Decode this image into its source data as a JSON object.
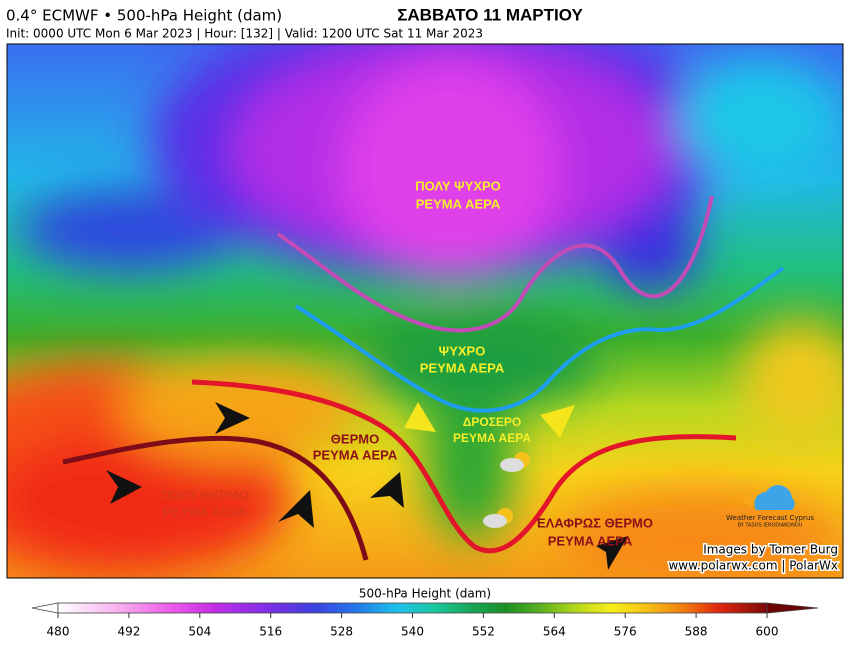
{
  "header": {
    "product": "0.4° ECMWF • 500-hPa Height (dam)",
    "init_line": "Init: 0000 UTC Mon 6 Mar 2023 | Hour: [132] | Valid: 1200 UTC Sat 11 Mar 2023",
    "title": "ΣΑΒΒΑΤΟ 11 ΜΑΡΤΙΟΥ"
  },
  "annotations": [
    [
      "ΠΟΛΥ ΨΥΧΡΟ",
      "ΡΕΥΜΑ ΑΕΡΑ"
    ],
    [
      "ΨΥΧΡΟ",
      "ΡΕΥΜΑ ΑΕΡΑ"
    ],
    [
      "ΔΡΟΣΕΡΟ",
      "ΡΕΥΜΑ ΑΕΡΑ"
    ],
    [
      "ΘΕΡΜΟ",
      "ΡΕΥΜΑ ΑΕΡΑ"
    ],
    [
      "ΠΟΛΥ ΘΕΡΜΟ",
      "ΡΕΥΜΑ ΑΕΡΑ"
    ],
    [
      "ΕΛΑΦΡΩΣ ΘΕΡΜΟ",
      "ΡΕΥΜΑ ΑΕΡΑ"
    ]
  ],
  "credits": {
    "images_by": "Images by Tomer Burg",
    "site": "www.polarwx.com | PolarWx",
    "logo_name": "Weather Forecast Cyprus",
    "logo_by": "BY TASOS IERODIAKONOU"
  },
  "colorbar": {
    "label": "500-hPa Height (dam)",
    "range": [
      480,
      600
    ],
    "ticks": [
      480,
      492,
      504,
      516,
      528,
      540,
      552,
      564,
      576,
      588,
      600
    ]
  }
}
